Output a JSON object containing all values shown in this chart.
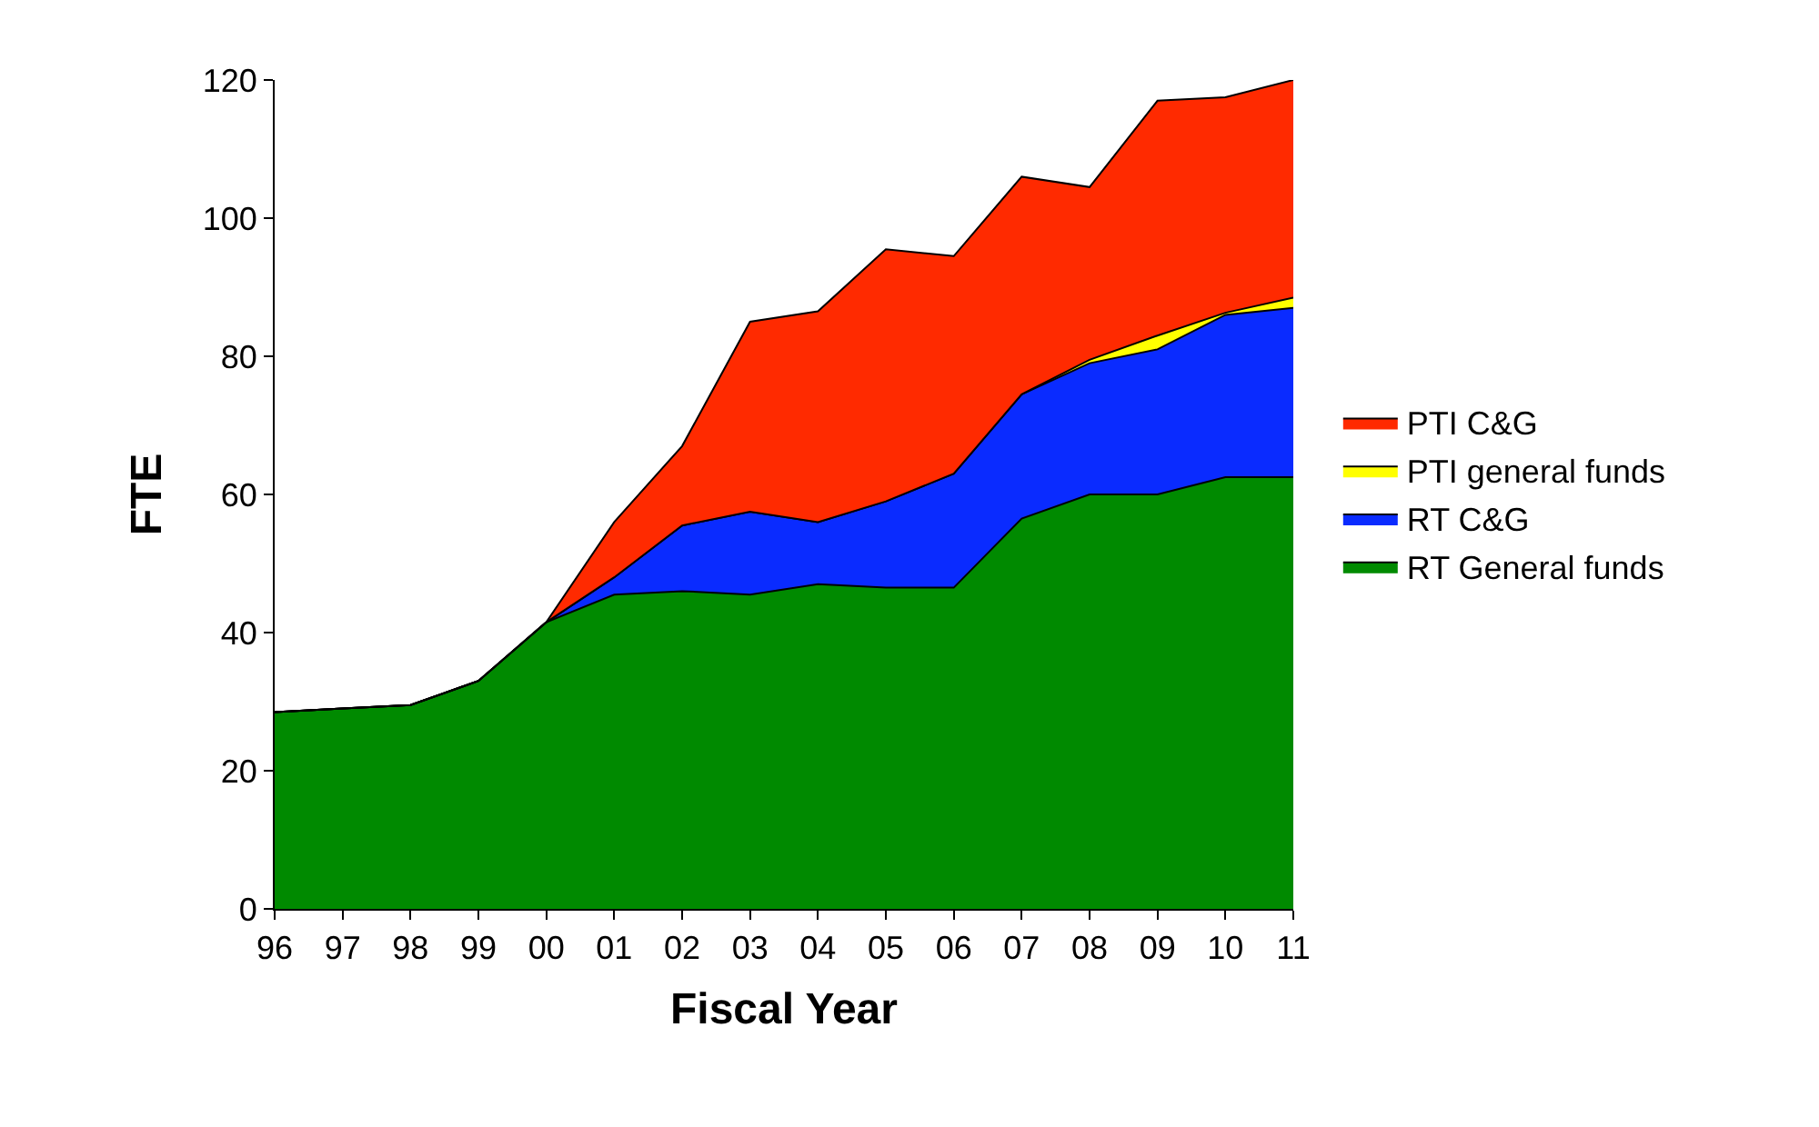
{
  "chart_data": {
    "type": "area",
    "stacked": true,
    "xlabel": "Fiscal Year",
    "ylabel": "FTE",
    "categories": [
      "96",
      "97",
      "98",
      "99",
      "00",
      "01",
      "02",
      "03",
      "04",
      "05",
      "06",
      "07",
      "08",
      "09",
      "10",
      "11"
    ],
    "series": [
      {
        "name": "RT General funds",
        "color": "#008a00",
        "values": [
          28.5,
          29,
          29.5,
          33,
          41.5,
          45.5,
          46,
          45.5,
          47,
          46.5,
          46.5,
          56.5,
          60,
          60,
          62.5,
          62.5
        ]
      },
      {
        "name": "RT C&G",
        "color": "#0a2bff",
        "values": [
          0,
          0,
          0,
          0,
          0,
          2.5,
          9.5,
          12,
          9,
          12.5,
          16.5,
          18,
          19,
          21,
          23.5,
          24.5
        ]
      },
      {
        "name": "PTI general funds",
        "color": "#ffff00",
        "values": [
          0,
          0,
          0,
          0,
          0,
          0,
          0,
          0,
          0,
          0,
          0,
          0,
          0.5,
          2,
          0.3,
          1.5
        ]
      },
      {
        "name": "PTI C&G",
        "color": "#ff2a00",
        "values": [
          0,
          0,
          0,
          0,
          0,
          8,
          11.5,
          27.5,
          30.5,
          36.5,
          31.5,
          31.5,
          25,
          34,
          31.2,
          31.5
        ]
      }
    ],
    "ylim": [
      0,
      120
    ],
    "yticks": [
      0,
      20,
      40,
      60,
      80,
      100,
      120
    ],
    "grid": false,
    "legend": "right"
  }
}
